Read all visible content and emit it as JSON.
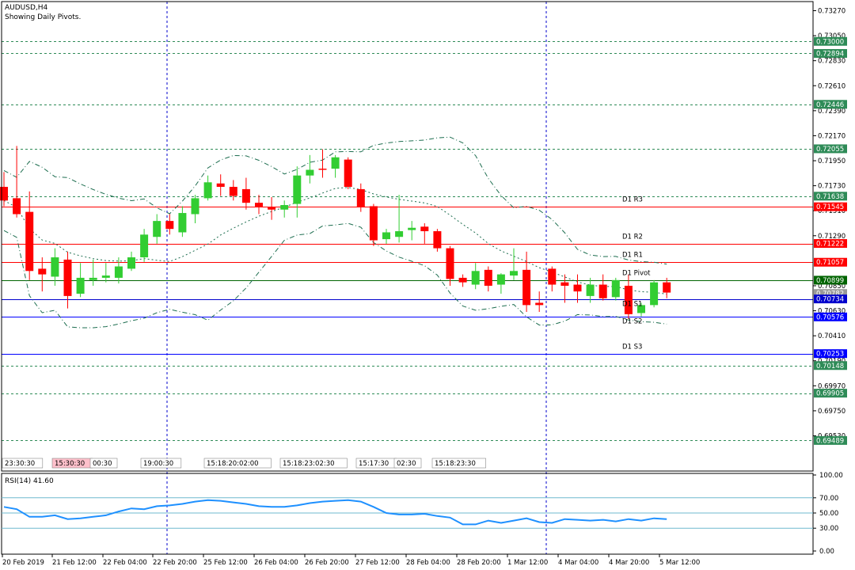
{
  "chart_data": {
    "type": "candlestick",
    "symbol_title": "AUDUSD,H4",
    "subtitle": "Showing Daily Pivots.",
    "price_range": [
      0.6922,
      0.7335
    ],
    "price_axis_labels": [
      "0.73270",
      "0.73050",
      "0.72830",
      "0.72610",
      "0.72390",
      "0.72170",
      "0.71950",
      "0.71730",
      "0.71510",
      "0.71290",
      "0.70850",
      "0.70630",
      "0.70410",
      "0.70190",
      "0.69970",
      "0.69750",
      "0.69530"
    ],
    "price_tags": [
      {
        "value": "0.73000",
        "price": 0.73,
        "color": "#2e8b57"
      },
      {
        "value": "0.72894",
        "price": 0.72894,
        "color": "#2e8b57"
      },
      {
        "value": "0.72446",
        "price": 0.72446,
        "color": "#2e8b57"
      },
      {
        "value": "0.72055",
        "price": 0.72055,
        "color": "#2e8b57"
      },
      {
        "value": "0.71638",
        "price": 0.71638,
        "color": "#2e8b57"
      },
      {
        "value": "0.71545",
        "price": 0.71545,
        "color": "#ff0000"
      },
      {
        "value": "0.71222",
        "price": 0.71222,
        "color": "#ff0000"
      },
      {
        "value": "0.71057",
        "price": 0.71057,
        "color": "#ff0000"
      },
      {
        "value": "0.70899",
        "price": 0.70899,
        "color": "#006400"
      },
      {
        "value": "0.70782",
        "price": 0.70782,
        "color": "#999999"
      },
      {
        "value": "0.70734",
        "price": 0.70734,
        "color": "#0000cd"
      },
      {
        "value": "0.70576",
        "price": 0.70576,
        "color": "#0000ff"
      },
      {
        "value": "0.70253",
        "price": 0.70253,
        "color": "#0000ff"
      },
      {
        "value": "0.70148",
        "price": 0.70148,
        "color": "#2e8b57"
      },
      {
        "value": "0.69905",
        "price": 0.69905,
        "color": "#2e8b57"
      },
      {
        "value": "0.69489",
        "price": 0.69489,
        "color": "#2e8b57"
      }
    ],
    "pivot_lines": [
      {
        "label": "D1 R3",
        "price": 0.71545,
        "color": "#ff0000"
      },
      {
        "label": "D1 R2",
        "price": 0.71222,
        "color": "#ff0000"
      },
      {
        "label": "D1 R1",
        "price": 0.71057,
        "color": "#ff0000"
      },
      {
        "label": "D1 Pivot",
        "price": 0.70899,
        "color": "#006400"
      },
      {
        "label": "D1 S1",
        "price": 0.70734,
        "color": "#0000cd"
      },
      {
        "label": "D1 S2",
        "price": 0.70576,
        "color": "#0000ff"
      },
      {
        "label": "D1 S3",
        "price": 0.70253,
        "color": "#0000ff"
      }
    ],
    "horizontal_dashed_levels": [
      0.73,
      0.72894,
      0.72446,
      0.72055,
      0.71638,
      0.70148,
      0.69905,
      0.69489
    ],
    "candles": [
      {
        "o": 0.7172,
        "h": 0.7185,
        "l": 0.7155,
        "c": 0.716
      },
      {
        "o": 0.7162,
        "h": 0.7208,
        "l": 0.7145,
        "c": 0.7148
      },
      {
        "o": 0.715,
        "h": 0.7168,
        "l": 0.709,
        "c": 0.7098
      },
      {
        "o": 0.71,
        "h": 0.711,
        "l": 0.708,
        "c": 0.7095
      },
      {
        "o": 0.7093,
        "h": 0.7118,
        "l": 0.7085,
        "c": 0.711
      },
      {
        "o": 0.7108,
        "h": 0.7115,
        "l": 0.7065,
        "c": 0.7076
      },
      {
        "o": 0.7078,
        "h": 0.7105,
        "l": 0.7075,
        "c": 0.7092
      },
      {
        "o": 0.709,
        "h": 0.7108,
        "l": 0.7085,
        "c": 0.7092
      },
      {
        "o": 0.7092,
        "h": 0.7105,
        "l": 0.7088,
        "c": 0.7094
      },
      {
        "o": 0.7092,
        "h": 0.711,
        "l": 0.7087,
        "c": 0.7102
      },
      {
        "o": 0.71,
        "h": 0.7115,
        "l": 0.7098,
        "c": 0.711
      },
      {
        "o": 0.711,
        "h": 0.7135,
        "l": 0.7106,
        "c": 0.713
      },
      {
        "o": 0.7128,
        "h": 0.7148,
        "l": 0.7122,
        "c": 0.7142
      },
      {
        "o": 0.7142,
        "h": 0.7148,
        "l": 0.713,
        "c": 0.7135
      },
      {
        "o": 0.7132,
        "h": 0.7155,
        "l": 0.7128,
        "c": 0.7149
      },
      {
        "o": 0.7148,
        "h": 0.7165,
        "l": 0.714,
        "c": 0.7162
      },
      {
        "o": 0.7162,
        "h": 0.7182,
        "l": 0.716,
        "c": 0.7176
      },
      {
        "o": 0.7175,
        "h": 0.7183,
        "l": 0.7164,
        "c": 0.7172
      },
      {
        "o": 0.7172,
        "h": 0.7178,
        "l": 0.716,
        "c": 0.7164
      },
      {
        "o": 0.717,
        "h": 0.718,
        "l": 0.7152,
        "c": 0.7158
      },
      {
        "o": 0.7158,
        "h": 0.7165,
        "l": 0.7148,
        "c": 0.7154
      },
      {
        "o": 0.7154,
        "h": 0.7163,
        "l": 0.7143,
        "c": 0.7152
      },
      {
        "o": 0.7152,
        "h": 0.716,
        "l": 0.7145,
        "c": 0.7156
      },
      {
        "o": 0.7157,
        "h": 0.719,
        "l": 0.7145,
        "c": 0.7182
      },
      {
        "o": 0.7182,
        "h": 0.72,
        "l": 0.7175,
        "c": 0.7187
      },
      {
        "o": 0.7188,
        "h": 0.7205,
        "l": 0.718,
        "c": 0.7187
      },
      {
        "o": 0.7188,
        "h": 0.72,
        "l": 0.718,
        "c": 0.7198
      },
      {
        "o": 0.7196,
        "h": 0.7198,
        "l": 0.717,
        "c": 0.7172
      },
      {
        "o": 0.717,
        "h": 0.7175,
        "l": 0.715,
        "c": 0.7154
      },
      {
        "o": 0.7155,
        "h": 0.7157,
        "l": 0.712,
        "c": 0.7125
      },
      {
        "o": 0.7126,
        "h": 0.7135,
        "l": 0.7122,
        "c": 0.7132
      },
      {
        "o": 0.7128,
        "h": 0.7165,
        "l": 0.7123,
        "c": 0.7133
      },
      {
        "o": 0.7134,
        "h": 0.7142,
        "l": 0.7125,
        "c": 0.7136
      },
      {
        "o": 0.7137,
        "h": 0.714,
        "l": 0.7122,
        "c": 0.7133
      },
      {
        "o": 0.7133,
        "h": 0.7135,
        "l": 0.7115,
        "c": 0.7118
      },
      {
        "o": 0.7118,
        "h": 0.712,
        "l": 0.7085,
        "c": 0.7091
      },
      {
        "o": 0.7092,
        "h": 0.7095,
        "l": 0.7084,
        "c": 0.7088
      },
      {
        "o": 0.7086,
        "h": 0.7105,
        "l": 0.7082,
        "c": 0.7098
      },
      {
        "o": 0.7099,
        "h": 0.7102,
        "l": 0.708,
        "c": 0.7085
      },
      {
        "o": 0.7086,
        "h": 0.7096,
        "l": 0.7078,
        "c": 0.7095
      },
      {
        "o": 0.7094,
        "h": 0.7118,
        "l": 0.709,
        "c": 0.7098
      },
      {
        "o": 0.7099,
        "h": 0.7115,
        "l": 0.7062,
        "c": 0.7068
      },
      {
        "o": 0.707,
        "h": 0.708,
        "l": 0.7062,
        "c": 0.7068
      },
      {
        "o": 0.71,
        "h": 0.7102,
        "l": 0.708,
        "c": 0.7086
      },
      {
        "o": 0.7088,
        "h": 0.7095,
        "l": 0.707,
        "c": 0.7085
      },
      {
        "o": 0.7086,
        "h": 0.7095,
        "l": 0.707,
        "c": 0.708
      },
      {
        "o": 0.7076,
        "h": 0.7092,
        "l": 0.707,
        "c": 0.7086
      },
      {
        "o": 0.7086,
        "h": 0.7095,
        "l": 0.7072,
        "c": 0.7074
      },
      {
        "o": 0.7075,
        "h": 0.7092,
        "l": 0.7072,
        "c": 0.709
      },
      {
        "o": 0.7085,
        "h": 0.7095,
        "l": 0.7056,
        "c": 0.706
      },
      {
        "o": 0.7061,
        "h": 0.707,
        "l": 0.7058,
        "c": 0.7068
      },
      {
        "o": 0.7068,
        "h": 0.709,
        "l": 0.7066,
        "c": 0.7088
      },
      {
        "o": 0.7088,
        "h": 0.7092,
        "l": 0.7074,
        "c": 0.7079
      }
    ],
    "time_labels": [
      "20 Feb 2019",
      "21 Feb 12:00",
      "22 Feb 04:00",
      "22 Feb 20:00",
      "25 Feb 12:00",
      "26 Feb 04:00",
      "26 Feb 20:00",
      "27 Feb 12:00",
      "28 Feb 04:00",
      "28 Feb 20:00",
      "1 Mar 12:00",
      "4 Mar 04:00",
      "4 Mar 20:00",
      "5 Mar 12:00"
    ],
    "session_labels": [
      {
        "text": "23:30:30",
        "pink": false
      },
      {
        "text": "15:30:30",
        "pink": true
      },
      {
        "text": "00:30",
        "pink": false
      },
      {
        "text": "19:00:30",
        "pink": false
      },
      {
        "text": "15:18:20:02:00",
        "pink": false
      },
      {
        "text": "15:18:23:02:30",
        "pink": false
      },
      {
        "text": "15:17:30",
        "pink": false
      },
      {
        "text": "02:30",
        "pink": false
      },
      {
        "text": "15:18:23:30",
        "pink": false
      }
    ],
    "rsi": {
      "label": "RSI(14) 41.60",
      "axis_labels": [
        "100.00",
        "70.00",
        "50.00",
        "30.00",
        "0.00"
      ],
      "levels": [
        70,
        50,
        30
      ],
      "values": [
        58,
        55,
        45,
        45,
        47,
        42,
        43,
        45,
        47,
        52,
        56,
        55,
        59,
        60,
        62,
        65,
        67,
        66,
        64,
        62,
        59,
        58,
        58,
        60,
        63,
        65,
        66,
        67,
        65,
        58,
        50,
        48,
        48,
        49,
        46,
        44,
        35,
        35,
        40,
        37,
        40,
        43,
        38,
        37,
        42,
        41,
        40,
        41,
        39,
        42,
        40,
        43,
        42
      ]
    },
    "grid": "vertical dashed session separators",
    "colors": {
      "bull": "#32cd32",
      "bear": "#ff0000",
      "bands": "#1e6e50",
      "rsi_line": "#1e90ff",
      "rsi_levels": "#6fb9cf",
      "axis": "#000000"
    }
  }
}
